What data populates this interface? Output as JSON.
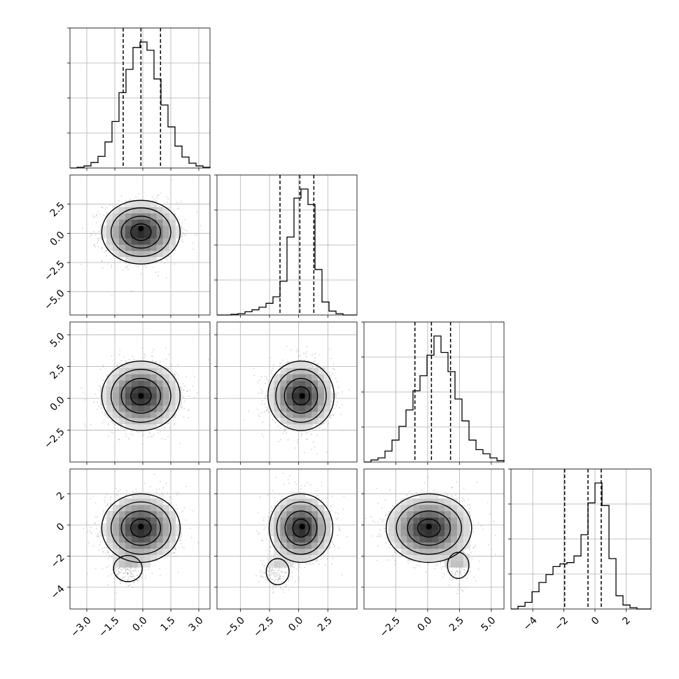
{
  "figure": {
    "background": "#ffffff",
    "grid_color": "#b0b0b0",
    "ink": "#000000",
    "scatter_color": "#808080"
  },
  "chart_data": {
    "type": "corner",
    "n_params": 4,
    "grid": true,
    "params": [
      {
        "range": [
          -3.9,
          3.6
        ],
        "ticks": [
          -3.0,
          -1.5,
          0.0,
          1.5,
          3.0
        ],
        "tick_labels": [
          "−3.0",
          "−1.5",
          "0.0",
          "1.5",
          "3.0"
        ]
      },
      {
        "range": [
          -7.0,
          5.0
        ],
        "ticks": [
          -5.0,
          -2.5,
          0.0,
          2.5
        ],
        "tick_labels": [
          "−5.0",
          "−2.5",
          "0.0",
          "2.5"
        ]
      },
      {
        "range": [
          -5.0,
          6.0
        ],
        "ticks": [
          -2.5,
          0.0,
          2.5,
          5.0
        ],
        "tick_labels": [
          "−2.5",
          "0.0",
          "2.5",
          "5.0"
        ]
      },
      {
        "range": [
          -5.4,
          3.6
        ],
        "ticks": [
          -4,
          -2,
          0,
          2
        ],
        "tick_labels": [
          "−4",
          "−2",
          "0",
          "2"
        ]
      }
    ],
    "histograms": [
      {
        "param": 0,
        "bin_edges": [
          -3.9,
          -3.525,
          -3.15,
          -2.775,
          -2.4,
          -2.025,
          -1.65,
          -1.275,
          -0.9,
          -0.525,
          -0.15,
          0.225,
          0.6,
          0.975,
          1.35,
          1.725,
          2.1,
          2.475,
          2.85,
          3.225,
          3.6
        ],
        "counts": [
          0.0,
          0.005,
          0.015,
          0.04,
          0.085,
          0.19,
          0.34,
          0.55,
          0.72,
          0.88,
          0.92,
          0.86,
          0.65,
          0.46,
          0.3,
          0.16,
          0.08,
          0.035,
          0.015,
          0.005
        ],
        "quantiles": [
          -1.05,
          -0.1,
          0.95
        ]
      },
      {
        "param": 1,
        "bin_edges": [
          -7.0,
          -6.4,
          -5.8,
          -5.2,
          -4.6,
          -4.0,
          -3.4,
          -2.8,
          -2.2,
          -1.6,
          -1.0,
          -0.4,
          0.2,
          0.8,
          1.4,
          2.0,
          2.6,
          3.2,
          3.8,
          4.4,
          5.0
        ],
        "counts": [
          0.0,
          0.0,
          0.005,
          0.01,
          0.025,
          0.04,
          0.06,
          0.09,
          0.14,
          0.26,
          0.6,
          0.9,
          0.97,
          0.85,
          0.35,
          0.1,
          0.03,
          0.01,
          0.0,
          0.0
        ],
        "quantiles": [
          -1.6,
          0.1,
          1.3
        ]
      },
      {
        "param": 2,
        "bin_edges": [
          -5.0,
          -4.45,
          -3.9,
          -3.35,
          -2.8,
          -2.25,
          -1.7,
          -1.15,
          -0.6,
          -0.05,
          0.5,
          1.05,
          1.6,
          2.15,
          2.7,
          3.25,
          3.8,
          4.35,
          4.9,
          5.45,
          6.0
        ],
        "counts": [
          0.0,
          0.015,
          0.03,
          0.08,
          0.16,
          0.26,
          0.38,
          0.52,
          0.63,
          0.78,
          0.92,
          0.8,
          0.66,
          0.46,
          0.3,
          0.16,
          0.09,
          0.06,
          0.03,
          0.01
        ],
        "quantiles": [
          -1.0,
          0.3,
          1.8
        ]
      },
      {
        "param": 3,
        "bin_edges": [
          -5.4,
          -4.95,
          -4.5,
          -4.05,
          -3.6,
          -3.15,
          -2.7,
          -2.25,
          -1.8,
          -1.35,
          -0.9,
          -0.45,
          0.0,
          0.45,
          0.9,
          1.35,
          1.8,
          2.25,
          2.7,
          3.15,
          3.6
        ],
        "counts": [
          0.0,
          0.02,
          0.05,
          0.13,
          0.2,
          0.26,
          0.32,
          0.34,
          0.35,
          0.4,
          0.56,
          0.8,
          0.95,
          0.78,
          0.38,
          0.1,
          0.03,
          0.01,
          0.0,
          0.0
        ],
        "quantiles": [
          -1.95,
          -0.45,
          0.4
        ]
      }
    ],
    "scatter_panels": [
      {
        "x_param": 0,
        "y_param": 1,
        "mean": [
          -0.1,
          0.1
        ],
        "sd": [
          1.0,
          1.3
        ],
        "peak": [
          -0.1,
          0.4
        ],
        "contour_radii_sd": [
          0.55,
          1.05,
          1.6,
          2.1
        ],
        "tail": null
      },
      {
        "x_param": 0,
        "y_param": 2,
        "mean": [
          -0.1,
          0.2
        ],
        "sd": [
          1.0,
          1.3
        ],
        "peak": [
          -0.1,
          0.2
        ],
        "contour_radii_sd": [
          0.55,
          1.05,
          1.6,
          2.1
        ],
        "tail": null
      },
      {
        "x_param": 1,
        "y_param": 2,
        "mean": [
          0.2,
          0.2
        ],
        "sd": [
          1.35,
          1.3
        ],
        "peak": [
          0.3,
          0.2
        ],
        "contour_radii_sd": [
          0.55,
          1.05,
          1.6,
          2.1
        ],
        "tail": null
      },
      {
        "x_param": 0,
        "y_param": 3,
        "mean": [
          -0.1,
          -0.2
        ],
        "sd": [
          1.0,
          1.05
        ],
        "peak": [
          -0.1,
          -0.1
        ],
        "contour_radii_sd": [
          0.55,
          1.05,
          1.6,
          2.1
        ],
        "tail": {
          "x": -0.8,
          "y": -2.8,
          "sx": 0.55,
          "sy": 0.6
        }
      },
      {
        "x_param": 1,
        "y_param": 3,
        "mean": [
          0.2,
          -0.2
        ],
        "sd": [
          1.3,
          1.05
        ],
        "peak": [
          0.3,
          -0.1
        ],
        "contour_radii_sd": [
          0.55,
          1.05,
          1.6,
          2.1
        ],
        "tail": {
          "x": -1.8,
          "y": -3.0,
          "sx": 0.7,
          "sy": 0.6
        }
      },
      {
        "x_param": 2,
        "y_param": 3,
        "mean": [
          0.1,
          -0.2
        ],
        "sd": [
          1.6,
          1.05
        ],
        "peak": [
          0.1,
          -0.1
        ],
        "contour_radii_sd": [
          0.55,
          1.05,
          1.6,
          2.1
        ],
        "tail": {
          "x": 2.4,
          "y": -2.6,
          "sx": 0.6,
          "sy": 0.6
        }
      }
    ]
  }
}
